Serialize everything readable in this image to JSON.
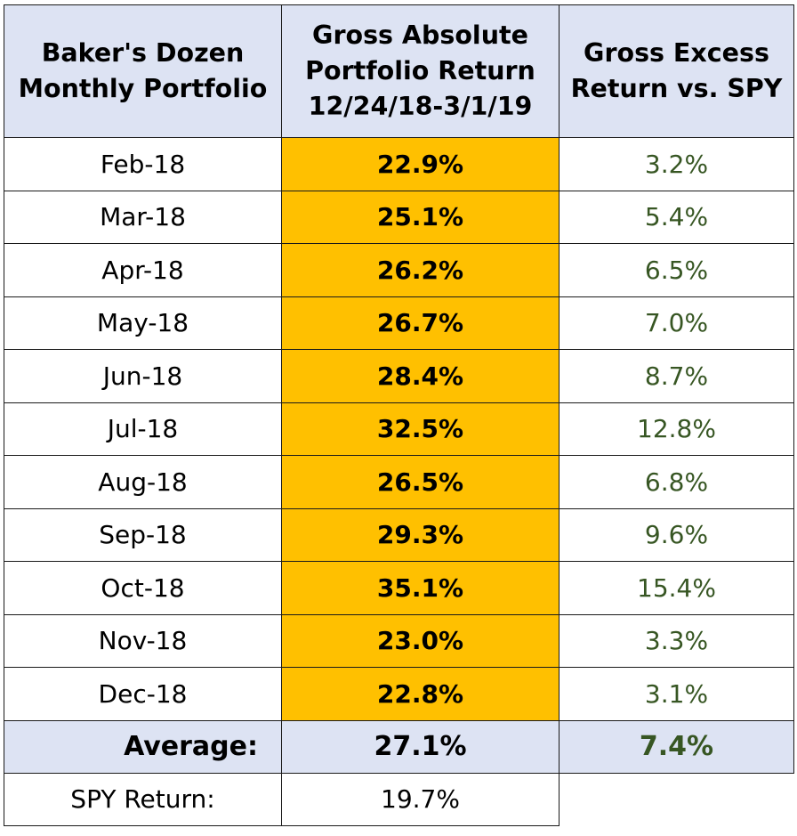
{
  "headers": {
    "col1": [
      "Baker's Dozen",
      "Monthly Portfolio"
    ],
    "col2": [
      "Gross Absolute",
      "Portfolio Return",
      "12/24/18-3/1/19"
    ],
    "col3": [
      "Gross Excess",
      "Return vs. SPY"
    ]
  },
  "rows": [
    {
      "month": "Feb-18",
      "absolute": "22.9%",
      "excess": "3.2%"
    },
    {
      "month": "Mar-18",
      "absolute": "25.1%",
      "excess": "5.4%"
    },
    {
      "month": "Apr-18",
      "absolute": "26.2%",
      "excess": "6.5%"
    },
    {
      "month": "May-18",
      "absolute": "26.7%",
      "excess": "7.0%"
    },
    {
      "month": "Jun-18",
      "absolute": "28.4%",
      "excess": "8.7%"
    },
    {
      "month": "Jul-18",
      "absolute": "32.5%",
      "excess": "12.8%"
    },
    {
      "month": "Aug-18",
      "absolute": "26.5%",
      "excess": "6.8%"
    },
    {
      "month": "Sep-18",
      "absolute": "29.3%",
      "excess": "9.6%"
    },
    {
      "month": "Oct-18",
      "absolute": "35.1%",
      "excess": "15.4%"
    },
    {
      "month": "Nov-18",
      "absolute": "23.0%",
      "excess": "3.3%"
    },
    {
      "month": "Dec-18",
      "absolute": "22.8%",
      "excess": "3.1%"
    }
  ],
  "average": {
    "label": "Average:",
    "absolute": "27.1%",
    "excess": "7.4%"
  },
  "spy": {
    "label": "SPY Return:",
    "value": "19.7%"
  },
  "colors": {
    "header_bg": "#dde3f3",
    "highlight": "#ffc000",
    "excess_text": "#375623"
  }
}
